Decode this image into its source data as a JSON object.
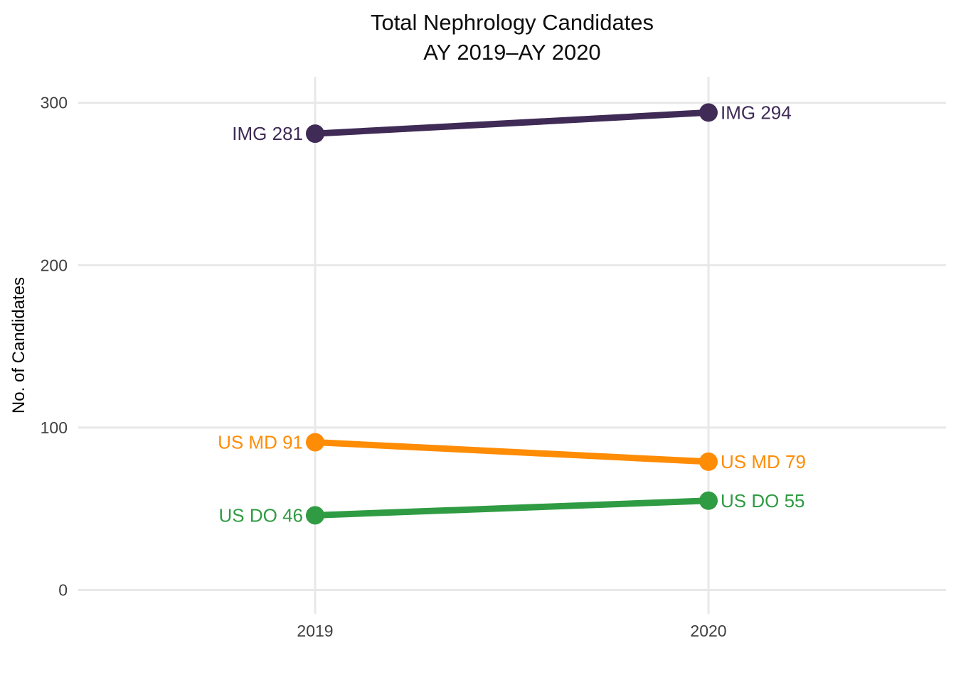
{
  "title": {
    "line1": "Total Nephrology Candidates",
    "line2": "AY 2019–AY 2020"
  },
  "chart_data": {
    "type": "line",
    "x": [
      2019,
      2020
    ],
    "x_tick_labels": [
      "2019",
      "2020"
    ],
    "series": [
      {
        "name": "IMG",
        "values": [
          281,
          294
        ],
        "labels": [
          "IMG 281",
          "IMG 294"
        ],
        "color": "#3F2B56"
      },
      {
        "name": "US MD",
        "values": [
          91,
          79
        ],
        "labels": [
          "US MD 91",
          "US MD 79"
        ],
        "color": "#FF8C05"
      },
      {
        "name": "US DO",
        "values": [
          46,
          55
        ],
        "labels": [
          "US DO 46",
          "US DO 55"
        ],
        "color": "#2F9B43"
      }
    ],
    "ylabel": "No. of Candidates",
    "xlabel": "",
    "ylim": [
      0,
      300
    ],
    "yticks": [
      0,
      100,
      200,
      300
    ],
    "grid": "major-only",
    "legend": "none-direct-labels"
  },
  "colors": {
    "background": "#FFFFFF",
    "gridline": "#E8E8E8",
    "tick_label": "#404040",
    "title": "#0D0D0D"
  }
}
